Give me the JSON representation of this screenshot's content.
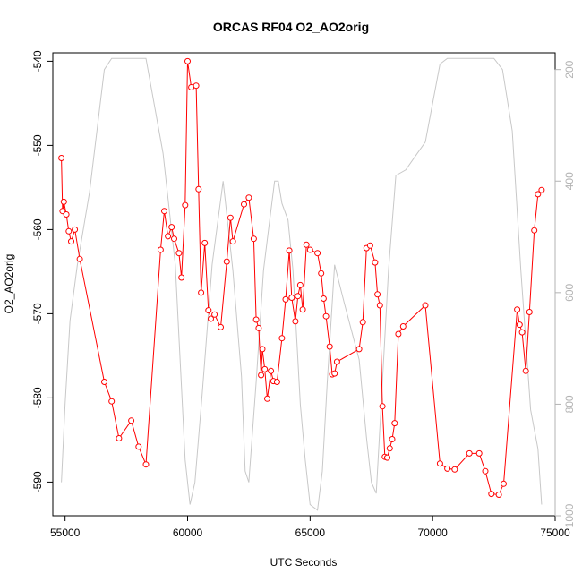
{
  "chart_data": {
    "type": "line",
    "title": "ORCAS RF04 O2_AO2orig",
    "xlabel": "UTC Seconds",
    "ylabel": "O2_AO2orig",
    "xlim": [
      54500,
      75000
    ],
    "ylim": [
      -594,
      -539
    ],
    "y2lim": [
      1000,
      170
    ],
    "x_ticks": [
      55000,
      60000,
      65000,
      70000,
      75000
    ],
    "y_ticks": [
      -540,
      -550,
      -560,
      -570,
      -580,
      -590
    ],
    "y2_ticks": [
      200,
      400,
      600,
      800,
      1000
    ],
    "grid": false,
    "series": [
      {
        "color": "#ff0000",
        "marker": "open-circle",
        "points": [
          [
            54850,
            -551.5
          ],
          [
            54900,
            -557.8
          ],
          [
            54950,
            -556.7
          ],
          [
            55050,
            -558.2
          ],
          [
            55150,
            -560.2
          ],
          [
            55250,
            -561.4
          ],
          [
            55400,
            -560.0
          ],
          [
            55600,
            -563.5
          ],
          [
            56600,
            -578.1
          ],
          [
            56900,
            -580.4
          ],
          [
            57200,
            -584.8
          ],
          [
            57700,
            -582.7
          ],
          [
            58000,
            -585.8
          ],
          [
            58300,
            -587.9
          ],
          [
            58900,
            -562.4
          ],
          [
            59050,
            -557.8
          ],
          [
            59200,
            -560.8
          ],
          [
            59350,
            -559.7
          ],
          [
            59450,
            -561.1
          ],
          [
            59650,
            -562.8
          ],
          [
            59750,
            -565.7
          ],
          [
            59900,
            -557.1
          ],
          [
            60000,
            -540.0
          ],
          [
            60150,
            -543.1
          ],
          [
            60350,
            -542.9
          ],
          [
            60450,
            -555.2
          ],
          [
            60550,
            -567.5
          ],
          [
            60700,
            -561.6
          ],
          [
            60850,
            -569.6
          ],
          [
            60950,
            -570.6
          ],
          [
            61100,
            -570.1
          ],
          [
            61350,
            -571.6
          ],
          [
            61600,
            -563.8
          ],
          [
            61750,
            -558.6
          ],
          [
            61850,
            -561.4
          ],
          [
            62300,
            -557.0
          ],
          [
            62500,
            -556.2
          ],
          [
            62700,
            -561.1
          ],
          [
            62800,
            -570.7
          ],
          [
            62900,
            -571.7
          ],
          [
            63000,
            -577.3
          ],
          [
            63050,
            -574.2
          ],
          [
            63150,
            -576.6
          ],
          [
            63250,
            -580.1
          ],
          [
            63400,
            -576.8
          ],
          [
            63500,
            -578.0
          ],
          [
            63650,
            -578.1
          ],
          [
            63850,
            -572.9
          ],
          [
            64000,
            -568.3
          ],
          [
            64150,
            -562.5
          ],
          [
            64250,
            -568.1
          ],
          [
            64400,
            -570.9
          ],
          [
            64500,
            -567.9
          ],
          [
            64600,
            -566.6
          ],
          [
            64700,
            -569.5
          ],
          [
            64850,
            -561.8
          ],
          [
            65000,
            -562.4
          ],
          [
            65300,
            -562.8
          ],
          [
            65450,
            -565.2
          ],
          [
            65550,
            -568.2
          ],
          [
            65650,
            -570.3
          ],
          [
            65800,
            -573.9
          ],
          [
            65900,
            -577.2
          ],
          [
            66000,
            -577.1
          ],
          [
            66100,
            -575.7
          ],
          [
            67000,
            -574.2
          ],
          [
            67150,
            -571.0
          ],
          [
            67300,
            -562.2
          ],
          [
            67450,
            -561.9
          ],
          [
            67650,
            -563.9
          ],
          [
            67750,
            -567.7
          ],
          [
            67850,
            -569.0
          ],
          [
            67950,
            -581.0
          ],
          [
            68050,
            -587.0
          ],
          [
            68150,
            -587.1
          ],
          [
            68250,
            -586.0
          ],
          [
            68350,
            -584.9
          ],
          [
            68450,
            -583.0
          ],
          [
            68600,
            -572.4
          ],
          [
            68800,
            -571.5
          ],
          [
            69700,
            -569.0
          ],
          [
            70300,
            -587.8
          ],
          [
            70600,
            -588.4
          ],
          [
            70900,
            -588.5
          ],
          [
            71500,
            -586.6
          ],
          [
            71900,
            -586.6
          ],
          [
            72150,
            -588.7
          ],
          [
            72400,
            -591.4
          ],
          [
            72700,
            -591.5
          ],
          [
            72900,
            -590.2
          ],
          [
            73450,
            -569.5
          ],
          [
            73550,
            -571.3
          ],
          [
            73650,
            -572.2
          ],
          [
            73800,
            -576.8
          ],
          [
            73950,
            -569.8
          ],
          [
            74150,
            -560.1
          ],
          [
            74300,
            -555.8
          ],
          [
            74450,
            -555.3
          ]
        ]
      },
      {
        "color": "#c8c8c8",
        "axis": "right",
        "points": [
          [
            54850,
            940
          ],
          [
            55000,
            800
          ],
          [
            55200,
            650
          ],
          [
            55500,
            550
          ],
          [
            56000,
            420
          ],
          [
            56600,
            200
          ],
          [
            56900,
            180
          ],
          [
            57500,
            180
          ],
          [
            58300,
            180
          ],
          [
            59000,
            350
          ],
          [
            59500,
            550
          ],
          [
            59900,
            900
          ],
          [
            60100,
            980
          ],
          [
            60300,
            940
          ],
          [
            60600,
            780
          ],
          [
            61000,
            550
          ],
          [
            61300,
            450
          ],
          [
            61450,
            400
          ],
          [
            61600,
            460
          ],
          [
            61850,
            560
          ],
          [
            62200,
            750
          ],
          [
            62350,
            920
          ],
          [
            62500,
            940
          ],
          [
            62800,
            760
          ],
          [
            63100,
            560
          ],
          [
            63350,
            470
          ],
          [
            63550,
            400
          ],
          [
            63700,
            400
          ],
          [
            63850,
            440
          ],
          [
            64100,
            470
          ],
          [
            64300,
            560
          ],
          [
            64600,
            800
          ],
          [
            64800,
            900
          ],
          [
            65000,
            980
          ],
          [
            65300,
            990
          ],
          [
            65500,
            920
          ],
          [
            65700,
            760
          ],
          [
            66000,
            550
          ],
          [
            66400,
            620
          ],
          [
            67000,
            720
          ],
          [
            67300,
            860
          ],
          [
            67500,
            940
          ],
          [
            67700,
            960
          ],
          [
            67950,
            760
          ],
          [
            68200,
            560
          ],
          [
            68500,
            390
          ],
          [
            68900,
            380
          ],
          [
            69300,
            355
          ],
          [
            69700,
            330
          ],
          [
            70000,
            260
          ],
          [
            70300,
            190
          ],
          [
            70600,
            180
          ],
          [
            71500,
            180
          ],
          [
            72500,
            180
          ],
          [
            72850,
            200
          ],
          [
            73250,
            310
          ],
          [
            73600,
            560
          ],
          [
            74000,
            810
          ],
          [
            74300,
            880
          ],
          [
            74450,
            980
          ]
        ]
      }
    ]
  }
}
